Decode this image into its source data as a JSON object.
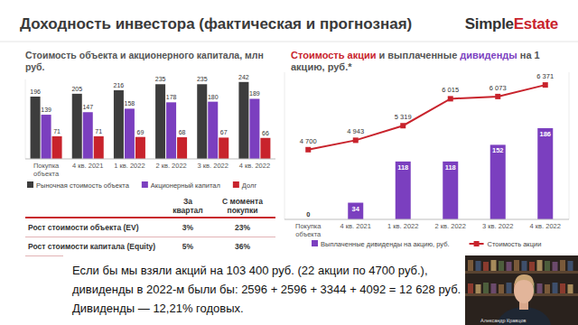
{
  "header": {
    "title": "Доходность инвестора (фактическая и прогнозная)",
    "logo": [
      "Simple",
      "Estate"
    ]
  },
  "chart_data": [
    {
      "type": "bar",
      "title": "Стоимость объекта и акционерного капитала, млн руб.",
      "categories": [
        "Покупка объекта",
        "4 кв. 2021",
        "1 кв. 2022",
        "2 кв. 2022",
        "3 кв. 2022",
        "4 кв. 2022"
      ],
      "series": [
        {
          "name": "Рыночная стоимость объекта",
          "color": "#3d3d3d",
          "values": [
            196,
            205,
            216,
            235,
            235,
            242
          ]
        },
        {
          "name": "Акционерный капитал",
          "color": "#7b3fbf",
          "values": [
            139,
            147,
            158,
            178,
            180,
            189
          ]
        },
        {
          "name": "Долг",
          "color": "#c8232c",
          "values": [
            71,
            71,
            69,
            68,
            67,
            66
          ]
        }
      ],
      "ylim": [
        0,
        250
      ],
      "data_labels": true,
      "tick_labels": "x",
      "legend": "bottom"
    },
    {
      "type": "bar",
      "title": [
        {
          "text": "Стоимость акции",
          "color": "#c8232c"
        },
        {
          "text": " и выплаченные "
        },
        {
          "text": "дивиденды",
          "color": "#7b3fbf"
        },
        {
          "text": " на 1 акцию, руб.*"
        }
      ],
      "categories": [
        "Покупка объекта",
        "4 кв. 2021",
        "1 кв. 2022",
        "2 кв. 2022",
        "3 кв. 2022",
        "4 кв. 2022"
      ],
      "series": [
        {
          "name": "Выплаченные дивиденды на акцию, руб.",
          "type": "bar",
          "color": "#7b3fbf",
          "values": [
            0,
            34,
            118,
            118,
            152,
            186
          ]
        },
        {
          "name": "Стоимость акции",
          "type": "line",
          "marker": "square",
          "axis": "y2",
          "color": "#c8232c",
          "values": [
            4700,
            4943,
            5319,
            6015,
            6073,
            6371
          ],
          "value_labels": [
            "4 700",
            "4 943",
            "5 319",
            "6 015",
            "6 073",
            "6 371"
          ]
        }
      ],
      "ylim": [
        0,
        300
      ],
      "y2lim": [
        2900,
        6700
      ],
      "data_labels": true,
      "tick_labels": "x",
      "legend": "bottom"
    }
  ],
  "table": {
    "header": [
      "За квартал",
      "С момента покупки"
    ],
    "rows": [
      [
        "Рост стоимости объекта (EV)",
        "3%",
        "23%"
      ],
      [
        "Рост стоимости капитала (Equity)",
        "5%",
        "36%"
      ]
    ]
  },
  "caption": [
    "Если бы мы взяли акций на 103 400 руб. (22 акции по 4700 руб.),",
    "дивиденды в 2022-м были бы: 2596 + 2596 + 3344 + 4092 = 12 628 руб.",
    "Дивиденды — 12,21% годовых."
  ],
  "presenter": "Александр Кравцов"
}
